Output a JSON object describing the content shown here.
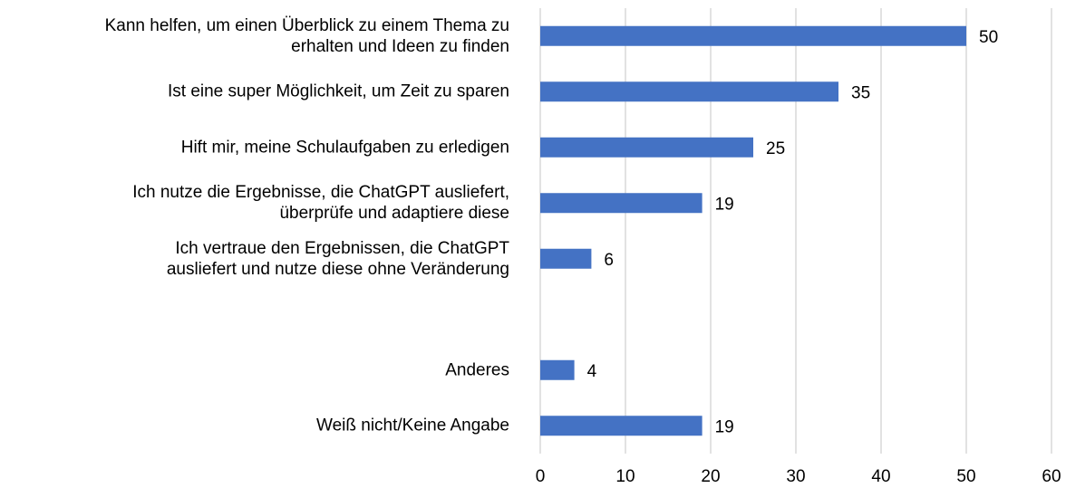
{
  "chart_data": {
    "type": "barh",
    "categories": [
      "Kann helfen, um einen Überblick zu einem Thema zu\nerhalten und Ideen zu finden",
      "Ist eine super Möglichkeit, um Zeit zu sparen",
      "Hift mir, meine Schulaufgaben zu erledigen",
      "Ich nutze die Ergebnisse, die ChatGPT ausliefert,\nüberprüfe und adaptiere diese",
      "Ich vertraue den Ergebnissen, die ChatGPT\nausliefert und nutze diese ohne Veränderung",
      null,
      "Anderes",
      "Weiß nicht/Keine Angabe"
    ],
    "values": [
      50,
      35,
      25,
      19,
      6,
      null,
      4,
      19
    ],
    "color": "#4472c4",
    "xlim": [
      0,
      60
    ],
    "xticks": [
      0,
      10,
      20,
      30,
      40,
      50,
      60
    ],
    "grid": true
  }
}
